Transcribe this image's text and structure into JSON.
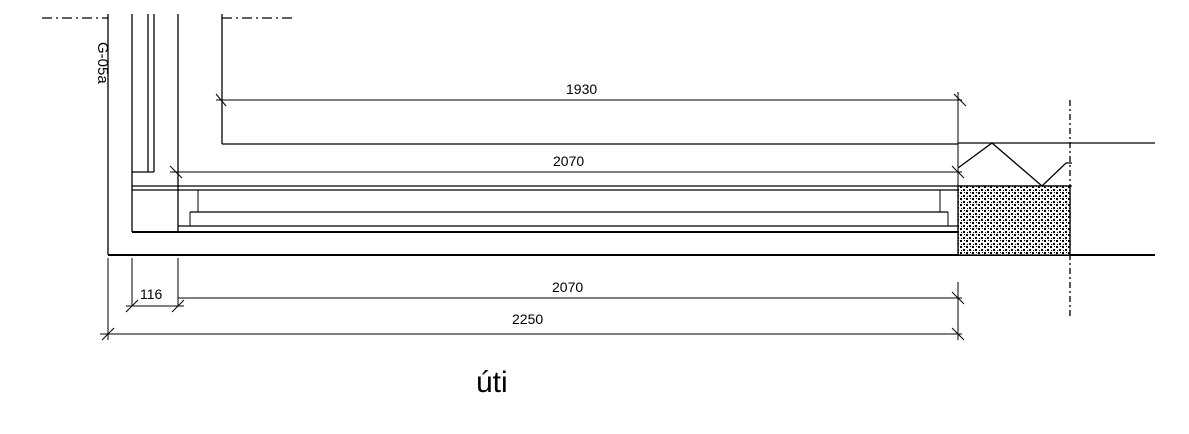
{
  "drawing": {
    "reference_label": "G-05a",
    "caption": "úti",
    "dimensions": {
      "top_length": "1930",
      "mid_length": "2070",
      "bottom_offset": "116",
      "bottom_length": "2070",
      "overall_length": "2250"
    }
  }
}
